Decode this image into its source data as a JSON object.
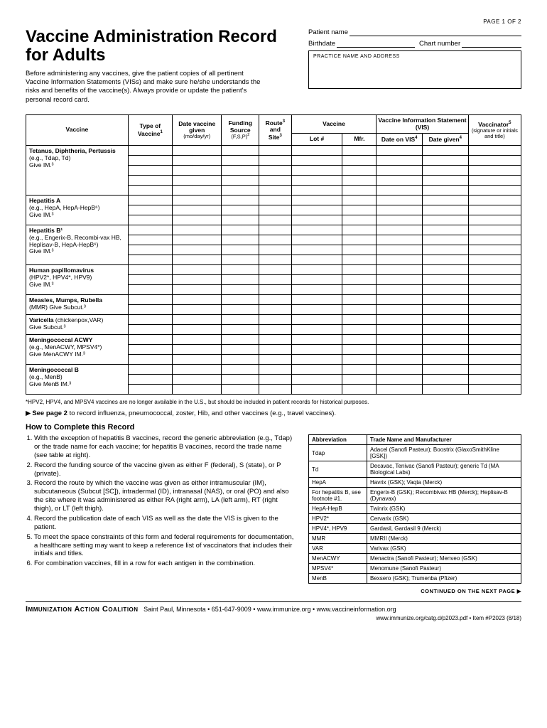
{
  "page_number": "PAGE 1 OF 2",
  "title": "Vaccine Administration Record for Adults",
  "intro": "Before administering any vaccines, give the patient copies of all pertinent Vaccine Information Statements (VISs) and make sure he/she understands the risks and benefits of the vaccine(s). Always provide or update the patient's personal record card.",
  "patient": {
    "name_label": "Patient name",
    "birthdate_label": "Birthdate",
    "chart_label": "Chart number",
    "practice_label": "PRACTICE NAME AND ADDRESS"
  },
  "table_headers": {
    "vaccine": "Vaccine",
    "type": "Type of",
    "type2": "Vaccine",
    "date": "Date vaccine given",
    "date_sub": "(mo/day/yr)",
    "funding": "Funding Source",
    "funding_sub": "(F,S,P)",
    "route": "Route",
    "route2": "and",
    "route3": "Site",
    "vac2": "Vaccine",
    "lot": "Lot #",
    "mfr": "Mfr.",
    "vis": "Vaccine Information Statement (VIS)",
    "date_vis": "Date on VIS",
    "date_given": "Date given",
    "vaccinator": "Vaccinator",
    "vaccinator_sub": "(signature or initials and title)"
  },
  "vaccines": [
    {
      "name": "Tetanus, Diphtheria, Pertussis",
      "eg": "(e.g., Tdap, Td)",
      "give": "Give IM.³",
      "rows": 5
    },
    {
      "name": "Hepatitis A",
      "eg": "(e.g., HepA, HepA-HepB⁶)",
      "give": "Give IM.³",
      "rows": 3
    },
    {
      "name": "Hepatitis B¹",
      "eg": "(e.g., Engerix-B, Recombi-vax HB, Heplisav-B, HepA-HepB⁶)",
      "give": "Give IM.³",
      "rows": 4
    },
    {
      "name": "Human papillomavirus",
      "eg": "(HPV2*, HPV4*, HPV9)",
      "give": "Give IM.³",
      "rows": 3
    },
    {
      "name": "Measles, Mumps, Rubella",
      "eg": "(MMR) Give Subcut.³",
      "give": "",
      "rows": 2
    },
    {
      "name": "Varicella",
      "eg": "(chickenpox,VAR)",
      "give": "Give Subcut.³",
      "rows": 2,
      "inline": true
    },
    {
      "name": "Meningococcal ACWY",
      "eg": "(e.g., MenACWY, MPSV4*)",
      "give": "Give MenACWY IM.³",
      "rows": 3
    },
    {
      "name": "Meningococcal B",
      "eg": "(e.g., MenB)",
      "give": "Give MenB IM.³",
      "rows": 3
    }
  ],
  "star_note": "*HPV2, HPV4, and MPSV4 vaccines are no longer available in the U.S., but should be included in patient records for historical purposes.",
  "see_page": "See page 2",
  "see_page_rest": " to record influenza, pneumococcal, zoster, Hib, and other vaccines (e.g., travel vaccines).",
  "how_title": "How to Complete this Record",
  "instructions": [
    "With the exception of hepatitis B vaccines, record the generic abbreviation (e.g., Tdap) or the trade name for each vaccine; for hepatitis B vaccines, record the trade name (see table at right).",
    "Record the funding source of the vaccine given as either F (federal), S (state), or P (private).",
    "Record the route by which the vaccine was given as either intramuscular (IM), subcutaneous (Subcut [SC]), intradermal (ID), intranasal (NAS), or oral (PO) and also the site where it was administered as either RA (right arm), LA (left arm), RT (right thigh), or LT (left thigh).",
    "Record the publication date of each VIS as well as the date the VIS is given to the patient.",
    "To meet the space constraints of this form and federal requirements for documentation, a healthcare setting may want to keep a reference list of vaccinators that includes their initials and titles.",
    "For combination vaccines, fill in a row for each antigen in the combination."
  ],
  "abbr_headers": {
    "abbr": "Abbreviation",
    "trade": "Trade Name and Manufacturer"
  },
  "abbr_rows": [
    [
      "Tdap",
      "Adacel (Sanofi Pasteur); Boostrix (GlaxoSmithKline [GSK])"
    ],
    [
      "Td",
      "Decavac, Tenivac (Sanofi Pasteur); generic Td (MA Biological Labs)"
    ],
    [
      "HepA",
      "Havrix (GSK); Vaqta (Merck)"
    ],
    [
      "For hepatitis B, see footnote #1.",
      "Engerix-B (GSK); Recombivax HB (Merck); Heplisav-B (Dynavax)"
    ],
    [
      "HepA-HepB",
      "Twinrix (GSK)"
    ],
    [
      "HPV2*",
      "Cervarix (GSK)"
    ],
    [
      "HPV4*, HPV9",
      "Gardasil, Gardasil 9 (Merck)"
    ],
    [
      "MMR",
      "MMRII (Merck)"
    ],
    [
      "VAR",
      "Varivax (GSK)"
    ],
    [
      "MenACWY",
      "Menactra (Sanofi Pasteur); Menveo (GSK)"
    ],
    [
      "MPSV4*",
      "Menomune (Sanofi Pasteur)"
    ],
    [
      "MenB",
      "Bexsero (GSK); Trumenba (Pfizer)"
    ]
  ],
  "continued": "CONTINUED ON THE NEXT PAGE ▶",
  "footer": {
    "org": "Immunization Action Coalition",
    "rest": "Saint Paul, Minnesota • 651-647-9009 • www.immunize.org • www.vaccineinformation.org",
    "line2": "www.immunize.org/catg.d/p2023.pdf • Item #P2023 (8/18)"
  }
}
